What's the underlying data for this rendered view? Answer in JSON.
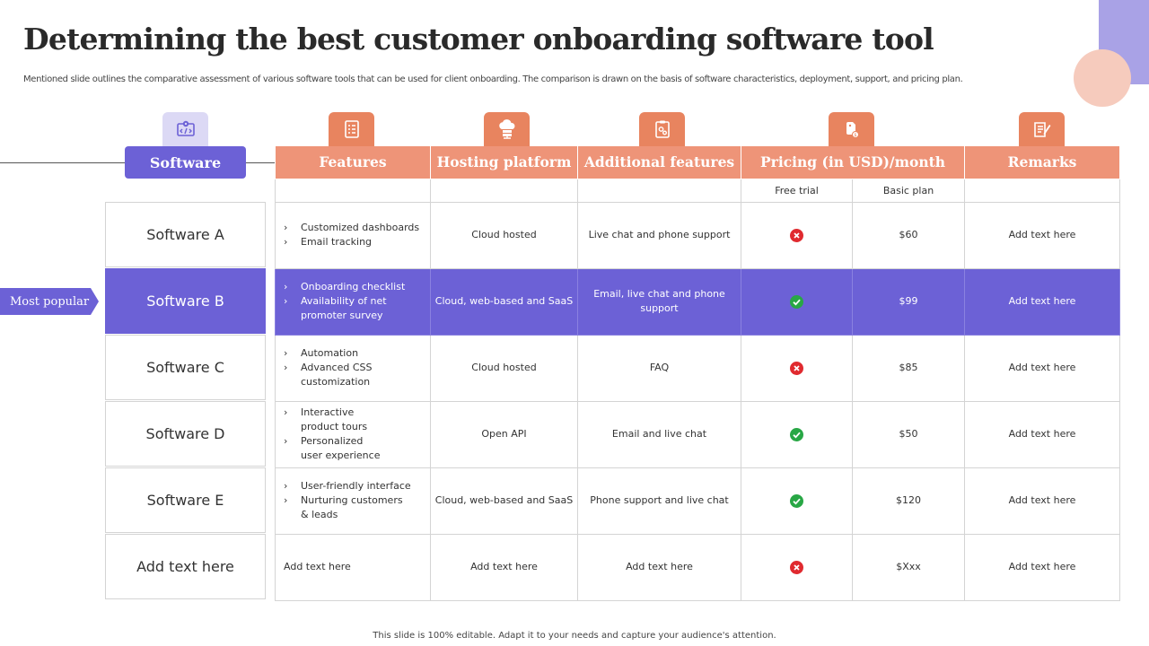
{
  "title": "Determining the best customer onboarding software tool",
  "subtitle": "Mentioned slide outlines the comparative assessment of various software tools that can be used for client onboarding. The comparison is drawn on the basis of software characteristics, deployment, support, and pricing plan.",
  "software_header": "Software",
  "most_popular_label": "Most popular",
  "columns": {
    "features": "Features",
    "hosting": "Hosting platform",
    "additional": "Additional features",
    "pricing": "Pricing (in USD)/month",
    "remarks": "Remarks"
  },
  "pricing_subheaders": {
    "free_trial": "Free trial",
    "basic_plan": "Basic plan"
  },
  "rows": [
    {
      "software": "Software A",
      "features": [
        "Customized dashboards",
        "Email tracking"
      ],
      "hosting": "Cloud hosted",
      "additional": "Live chat and phone support",
      "free_trial": "no",
      "basic_plan": "$60",
      "remarks": "Add text here"
    },
    {
      "software": "Software B",
      "features": [
        "Onboarding checklist",
        "Availability of net promoter survey"
      ],
      "hosting": "Cloud, web-based and SaaS",
      "additional": "Email, live chat and phone support",
      "free_trial": "yes",
      "basic_plan": "$99",
      "remarks": "Add text here"
    },
    {
      "software": "Software C",
      "features": [
        "Automation",
        "Advanced CSS customization"
      ],
      "hosting": "Cloud hosted",
      "additional": "FAQ",
      "free_trial": "no",
      "basic_plan": "$85",
      "remarks": "Add text here"
    },
    {
      "software": "Software D",
      "features": [
        "Interactive product tours",
        "Personalized user experience"
      ],
      "hosting": "Open API",
      "additional": "Email and live chat",
      "free_trial": "yes",
      "basic_plan": "$50",
      "remarks": "Add text here"
    },
    {
      "software": "Software E",
      "features": [
        "User-friendly interface",
        "Nurturing customers & leads"
      ],
      "hosting": "Cloud, web-based and SaaS",
      "additional": "Phone support and live chat",
      "free_trial": "yes",
      "basic_plan": "$120",
      "remarks": "Add text here"
    },
    {
      "software": "Add text here",
      "features_text": "Add text here",
      "hosting": "Add text here",
      "additional": "Add text here",
      "free_trial": "no",
      "basic_plan": "$Xxx",
      "remarks": "Add text here"
    }
  ],
  "footer": "This slide is 100% editable. Adapt it to your needs and capture your audience's attention.",
  "icons": {
    "software": "code-gear-icon",
    "features": "checklist-icon",
    "hosting": "cloud-server-icon",
    "additional": "clipboard-gear-icon",
    "pricing": "price-tag-icon",
    "remarks": "notes-icon"
  },
  "colors": {
    "accent_purple": "#6c61d6",
    "accent_orange": "#ee9478",
    "yes": "#28a745",
    "no": "#e02a2f"
  }
}
